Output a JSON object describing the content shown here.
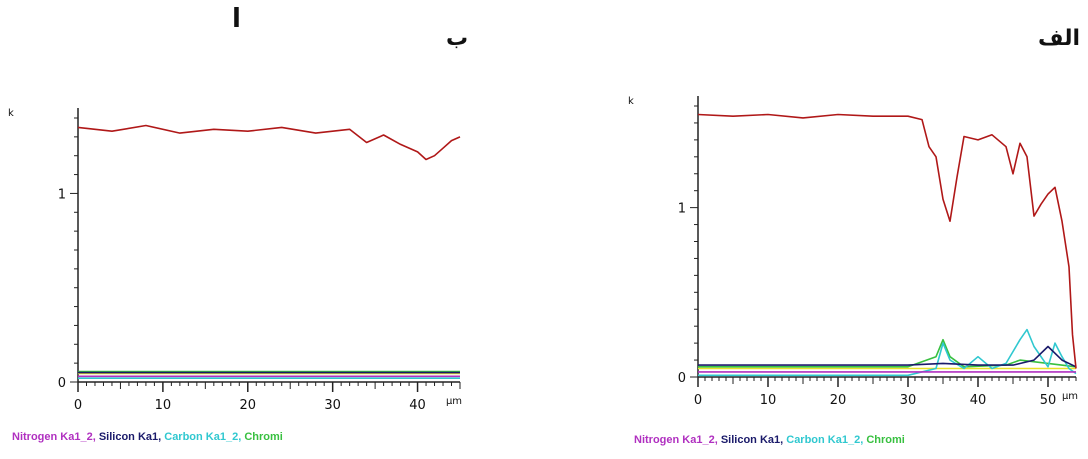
{
  "labels": {
    "left": "ب",
    "right": "الف",
    "top": "ا"
  },
  "colors": {
    "chromium": "#b01818",
    "nitrogen": "#b030c0",
    "silicon": "#1a1a6a",
    "carbon": "#30c8d0",
    "green": "#38c040",
    "yellow": "#e8e028"
  },
  "chart_data": [
    {
      "type": "line",
      "panel": "ب",
      "xlabel": "µm",
      "ylabel": "k",
      "xlim": [
        0,
        45
      ],
      "ylim": [
        0,
        1.4
      ],
      "xticks": [
        "0",
        "10",
        "20",
        "30",
        "40"
      ],
      "yticks": [
        "0",
        "1"
      ],
      "legend": [
        "Nitrogen Ka1_2",
        "Silicon Ka1",
        "Carbon Ka1_2",
        "Chromi"
      ],
      "series": [
        {
          "name": "Chromi",
          "color": "#b01818",
          "x": [
            0,
            4,
            8,
            12,
            16,
            20,
            24,
            28,
            32,
            34,
            36,
            38,
            40,
            41,
            42,
            43,
            44,
            45
          ],
          "y": [
            1.35,
            1.33,
            1.36,
            1.32,
            1.34,
            1.33,
            1.35,
            1.32,
            1.34,
            1.27,
            1.31,
            1.26,
            1.22,
            1.18,
            1.2,
            1.24,
            1.28,
            1.3
          ]
        },
        {
          "name": "Nitrogen Ka1_2",
          "color": "#b030c0",
          "x": [
            0,
            45
          ],
          "y": [
            0.03,
            0.03
          ]
        },
        {
          "name": "Silicon Ka1",
          "color": "#1a1a6a",
          "x": [
            0,
            45
          ],
          "y": [
            0.05,
            0.05
          ]
        },
        {
          "name": "Carbon Ka1_2",
          "color": "#30c8d0",
          "x": [
            0,
            45
          ],
          "y": [
            0.02,
            0.02
          ]
        },
        {
          "name": "green",
          "color": "#38c040",
          "x": [
            0,
            45
          ],
          "y": [
            0.055,
            0.055
          ]
        },
        {
          "name": "yellow",
          "color": "#e8e028",
          "x": [
            0,
            45
          ],
          "y": [
            0.045,
            0.045
          ]
        }
      ]
    },
    {
      "type": "line",
      "panel": "الف",
      "xlabel": "µm",
      "ylabel": "k",
      "xlim": [
        0,
        54
      ],
      "ylim": [
        0,
        1.6
      ],
      "xticks": [
        "0",
        "10",
        "20",
        "30",
        "40",
        "50"
      ],
      "yticks": [
        "0",
        "1"
      ],
      "legend": [
        "Nitrogen Ka1_2",
        "Silicon Ka1",
        "Carbon Ka1_2",
        "Chromi"
      ],
      "series": [
        {
          "name": "Chromi",
          "color": "#b01818",
          "x": [
            0,
            5,
            10,
            15,
            20,
            25,
            30,
            32,
            33,
            34,
            35,
            36,
            37,
            38,
            40,
            42,
            44,
            45,
            46,
            47,
            48,
            49,
            50,
            51,
            52,
            53,
            53.5,
            54
          ],
          "y": [
            1.55,
            1.54,
            1.55,
            1.53,
            1.55,
            1.54,
            1.54,
            1.52,
            1.36,
            1.3,
            1.05,
            0.92,
            1.18,
            1.42,
            1.4,
            1.43,
            1.36,
            1.2,
            1.38,
            1.3,
            0.95,
            1.02,
            1.08,
            1.12,
            0.92,
            0.65,
            0.25,
            0.05
          ]
        },
        {
          "name": "Nitrogen Ka1_2",
          "color": "#b030c0",
          "x": [
            0,
            54
          ],
          "y": [
            0.03,
            0.03
          ]
        },
        {
          "name": "Silicon Ka1",
          "color": "#1a1a6a",
          "x": [
            0,
            30,
            35,
            40,
            45,
            48,
            50,
            52,
            54
          ],
          "y": [
            0.07,
            0.07,
            0.08,
            0.07,
            0.07,
            0.1,
            0.18,
            0.1,
            0.06
          ]
        },
        {
          "name": "Carbon Ka1_2",
          "color": "#30c8d0",
          "x": [
            0,
            30,
            34,
            35,
            36,
            38,
            40,
            42,
            44,
            46,
            47,
            48,
            50,
            51,
            52,
            53,
            54
          ],
          "y": [
            0.01,
            0.01,
            0.05,
            0.2,
            0.1,
            0.05,
            0.12,
            0.05,
            0.08,
            0.22,
            0.28,
            0.18,
            0.06,
            0.2,
            0.12,
            0.05,
            0.02
          ]
        },
        {
          "name": "green",
          "color": "#38c040",
          "x": [
            0,
            30,
            34,
            35,
            36,
            38,
            44,
            46,
            54
          ],
          "y": [
            0.06,
            0.06,
            0.12,
            0.22,
            0.12,
            0.06,
            0.07,
            0.1,
            0.06
          ]
        },
        {
          "name": "yellow",
          "color": "#e8e028",
          "x": [
            0,
            54
          ],
          "y": [
            0.05,
            0.05
          ]
        }
      ]
    }
  ]
}
